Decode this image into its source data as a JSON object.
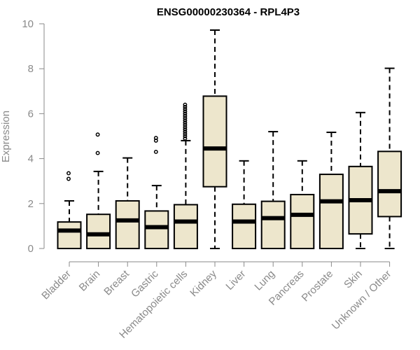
{
  "colors": {
    "box_fill": "#ede6cc",
    "box_stroke": "#000000",
    "axis": "#8a8a8a",
    "text_muted": "#8a8a8a"
  },
  "chart_data": {
    "type": "boxplot",
    "title": "ENSG00000230364 - RPL4P3",
    "xlabel": "",
    "ylabel": "Expression",
    "ylim": [
      0,
      10
    ],
    "yticks": [
      0,
      2,
      4,
      6,
      8,
      10
    ],
    "grid": false,
    "legend": "none",
    "categories": [
      "Bladder",
      "Brain",
      "Breast",
      "Gastric",
      "Hematopoietic cells",
      "Kidney",
      "Liver",
      "Lung",
      "Pancreas",
      "Prostate",
      "Skin",
      "Unknown / Other"
    ],
    "boxes": [
      {
        "min": 0,
        "q1": 0,
        "median": 0.8,
        "q3": 1.18,
        "max": 2.12,
        "outliers": [
          3.1,
          3.35
        ]
      },
      {
        "min": 0,
        "q1": 0,
        "median": 0.63,
        "q3": 1.52,
        "max": 3.43,
        "outliers": [
          4.25,
          5.07
        ]
      },
      {
        "min": 0,
        "q1": 0,
        "median": 1.25,
        "q3": 2.12,
        "max": 4.03,
        "outliers": []
      },
      {
        "min": 0,
        "q1": 0,
        "median": 0.95,
        "q3": 1.67,
        "max": 2.8,
        "outliers": [
          4.3,
          4.8,
          4.92
        ]
      },
      {
        "min": 0,
        "q1": 0,
        "median": 1.2,
        "q3": 1.95,
        "max": 4.8,
        "outliers": [
          4.9,
          5.0,
          5.1,
          5.2,
          5.3,
          5.4,
          5.5,
          5.6,
          5.7,
          5.8,
          5.9,
          6.0,
          6.1,
          6.2,
          6.3,
          6.4
        ]
      },
      {
        "min": 0,
        "q1": 2.75,
        "median": 4.45,
        "q3": 6.78,
        "max": 9.72,
        "outliers": []
      },
      {
        "min": 0,
        "q1": 0,
        "median": 1.2,
        "q3": 1.97,
        "max": 3.9,
        "outliers": []
      },
      {
        "min": 0,
        "q1": 0,
        "median": 1.35,
        "q3": 2.1,
        "max": 5.2,
        "outliers": []
      },
      {
        "min": 0,
        "q1": 0,
        "median": 1.5,
        "q3": 2.4,
        "max": 3.9,
        "outliers": []
      },
      {
        "min": 0,
        "q1": 0,
        "median": 2.1,
        "q3": 3.3,
        "max": 5.17,
        "outliers": []
      },
      {
        "min": 0,
        "q1": 0.65,
        "median": 2.15,
        "q3": 3.65,
        "max": 6.05,
        "outliers": []
      },
      {
        "min": 0,
        "q1": 1.42,
        "median": 2.55,
        "q3": 4.32,
        "max": 8.02,
        "outliers": []
      }
    ]
  }
}
